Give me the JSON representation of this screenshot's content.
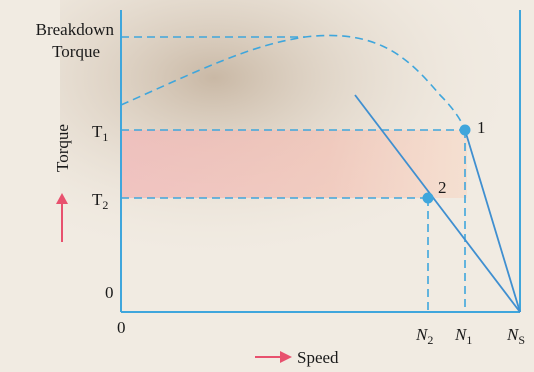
{
  "figure": {
    "breakdown_label": [
      "Breakdown",
      "Torque"
    ],
    "t1": {
      "main": "T",
      "sub": "1"
    },
    "t2": {
      "main": "T",
      "sub": "2"
    },
    "y_zero": "0",
    "x_zero": "0",
    "n2": {
      "main": "N",
      "sub": "2"
    },
    "n1": {
      "main": "N",
      "sub": "1"
    },
    "ns": {
      "main": "N",
      "sub": "S"
    },
    "y_axis_label": "Torque",
    "x_axis_label": "Speed",
    "point_1": "1",
    "point_2": "2"
  }
}
